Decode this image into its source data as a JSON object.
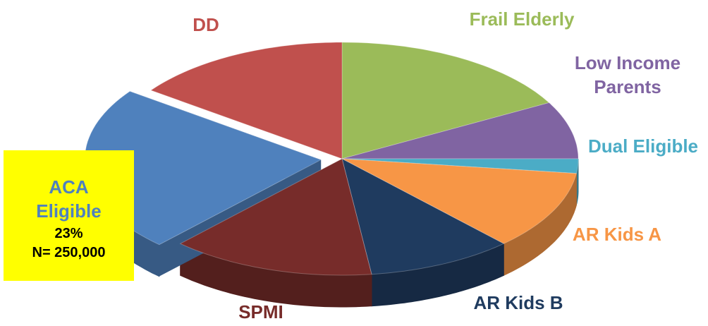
{
  "chart_data": {
    "type": "pie3d",
    "categories": [
      "Frail Elderly",
      "Low Income Parents",
      "Dual Eligible",
      "AR Kids A",
      "AR Kids B",
      "SPMI",
      "ACA Eligible",
      "DD"
    ],
    "values": [
      17,
      8,
      2,
      11,
      10,
      14,
      23,
      15
    ],
    "value_labels": [
      null,
      null,
      null,
      null,
      null,
      null,
      "23%",
      null
    ],
    "colors": [
      "#9bbb59",
      "#8064a2",
      "#4bacc6",
      "#f79646",
      "#1f3b5f",
      "#772c2a",
      "#4f81bd",
      "#c0504d"
    ],
    "exploded": "ACA Eligible",
    "annotation": "N= 250,000"
  }
}
